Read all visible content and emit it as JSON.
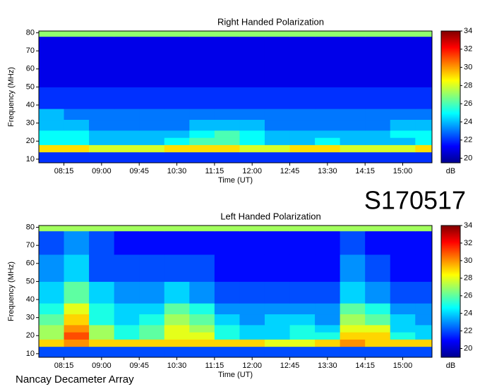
{
  "chart_data": [
    {
      "type": "heatmap",
      "title": "Right Handed Polarization",
      "xlabel": "Time (UT)",
      "ylabel": "Frequency (MHz)",
      "x": [
        "07:45",
        "08:15",
        "08:45",
        "09:15",
        "09:45",
        "10:15",
        "10:45",
        "11:15",
        "11:45",
        "12:15",
        "12:45",
        "13:15",
        "13:45",
        "14:15",
        "14:45",
        "15:15"
      ],
      "xlim": [
        "07:45",
        "15:35"
      ],
      "xticks": [
        "08:15",
        "09:00",
        "09:45",
        "10:30",
        "11:15",
        "12:00",
        "12:45",
        "13:30",
        "14:15",
        "15:00"
      ],
      "ybins": [
        8,
        14,
        18,
        22,
        26,
        32,
        38,
        50,
        65,
        78,
        81
      ],
      "ylim": [
        8,
        81
      ],
      "yticks": [
        10,
        20,
        30,
        40,
        50,
        60,
        70,
        80
      ],
      "values": [
        [
          22,
          22,
          22,
          22,
          22,
          22,
          22,
          22,
          22,
          22,
          22,
          22,
          22,
          22,
          22,
          22
        ],
        [
          29,
          29,
          28,
          28,
          28,
          29,
          29,
          29,
          28,
          28,
          29,
          29,
          28,
          28,
          28,
          29
        ],
        [
          25,
          25,
          24,
          24,
          24,
          25,
          26,
          26,
          25,
          24,
          24,
          25,
          24,
          24,
          24,
          25
        ],
        [
          25,
          25,
          24,
          24,
          24,
          24,
          25,
          26,
          25,
          24,
          24,
          24,
          24,
          24,
          25,
          25
        ],
        [
          24,
          24,
          23,
          23,
          23,
          23,
          24,
          24,
          24,
          23,
          23,
          23,
          23,
          23,
          24,
          24
        ],
        [
          24,
          23,
          23,
          23,
          23,
          23,
          23,
          23,
          23,
          23,
          23,
          23,
          23,
          23,
          23,
          23
        ],
        [
          22,
          22,
          22,
          22,
          22,
          22,
          22,
          22,
          22,
          22,
          22,
          22,
          22,
          22,
          22,
          22
        ],
        [
          21,
          21,
          21,
          21,
          21,
          21,
          21,
          21,
          21,
          21,
          21,
          21,
          21,
          21,
          21,
          21
        ],
        [
          21,
          21,
          21,
          21,
          21,
          21,
          21,
          21,
          21,
          21,
          21,
          21,
          21,
          21,
          21,
          21
        ],
        [
          27,
          27,
          27,
          27,
          27,
          27,
          27,
          27,
          27,
          27,
          27,
          27,
          27,
          27,
          27,
          27
        ]
      ],
      "zlim": [
        19.5,
        34
      ],
      "zticks": [
        20,
        22,
        24,
        26,
        28,
        30,
        32,
        34
      ],
      "zlabel": "dB",
      "colormap": "jet"
    },
    {
      "type": "heatmap",
      "title": "Left Handed Polarization",
      "xlabel": "Time (UT)",
      "ylabel": "Frequency (MHz)",
      "x": [
        "07:45",
        "08:15",
        "08:45",
        "09:15",
        "09:45",
        "10:15",
        "10:45",
        "11:15",
        "11:45",
        "12:15",
        "12:45",
        "13:15",
        "13:45",
        "14:15",
        "14:45",
        "15:15"
      ],
      "xlim": [
        "07:45",
        "15:35"
      ],
      "xticks": [
        "08:15",
        "09:00",
        "09:45",
        "10:30",
        "11:15",
        "12:00",
        "12:45",
        "13:30",
        "14:15",
        "15:00"
      ],
      "ybins": [
        8,
        14,
        18,
        22,
        26,
        32,
        38,
        50,
        65,
        78,
        81
      ],
      "ylim": [
        8,
        81
      ],
      "yticks": [
        10,
        20,
        30,
        40,
        50,
        60,
        70,
        80
      ],
      "values": [
        [
          22,
          22,
          22,
          22,
          22,
          22,
          22,
          22,
          22,
          22,
          22,
          22,
          22,
          22,
          22,
          22
        ],
        [
          29,
          30,
          29,
          29,
          29,
          29,
          29,
          29,
          29,
          28,
          28,
          29,
          30,
          29,
          29,
          29
        ],
        [
          27,
          31,
          27,
          25,
          26,
          28,
          28,
          25,
          24,
          24,
          25,
          25,
          29,
          29,
          25,
          24
        ],
        [
          27,
          30,
          27,
          25,
          26,
          28,
          27,
          25,
          24,
          24,
          25,
          24,
          28,
          28,
          24,
          24
        ],
        [
          26,
          29,
          25,
          24,
          25,
          27,
          26,
          24,
          23,
          24,
          24,
          23,
          27,
          26,
          24,
          23
        ],
        [
          25,
          28,
          25,
          24,
          24,
          26,
          25,
          23,
          23,
          23,
          23,
          23,
          26,
          25,
          23,
          23
        ],
        [
          24,
          26,
          24,
          23,
          23,
          24,
          23,
          22,
          22,
          22,
          22,
          22,
          24,
          23,
          22,
          22
        ],
        [
          23,
          24,
          22,
          22,
          22,
          22,
          22,
          21,
          21,
          21,
          21,
          21,
          23,
          22,
          21,
          21
        ],
        [
          22,
          23,
          22,
          21,
          21,
          21,
          21,
          21,
          21,
          21,
          21,
          21,
          22,
          21,
          21,
          21
        ],
        [
          27,
          27,
          27,
          27,
          27,
          27,
          27,
          27,
          27,
          27,
          27,
          27,
          27,
          27,
          27,
          27
        ]
      ],
      "zlim": [
        19,
        34
      ],
      "zticks": [
        20,
        22,
        24,
        26,
        28,
        30,
        32,
        34
      ],
      "zlabel": "dB",
      "colormap": "jet"
    }
  ],
  "label": "S170517",
  "footer": "Nancay Decameter Array"
}
